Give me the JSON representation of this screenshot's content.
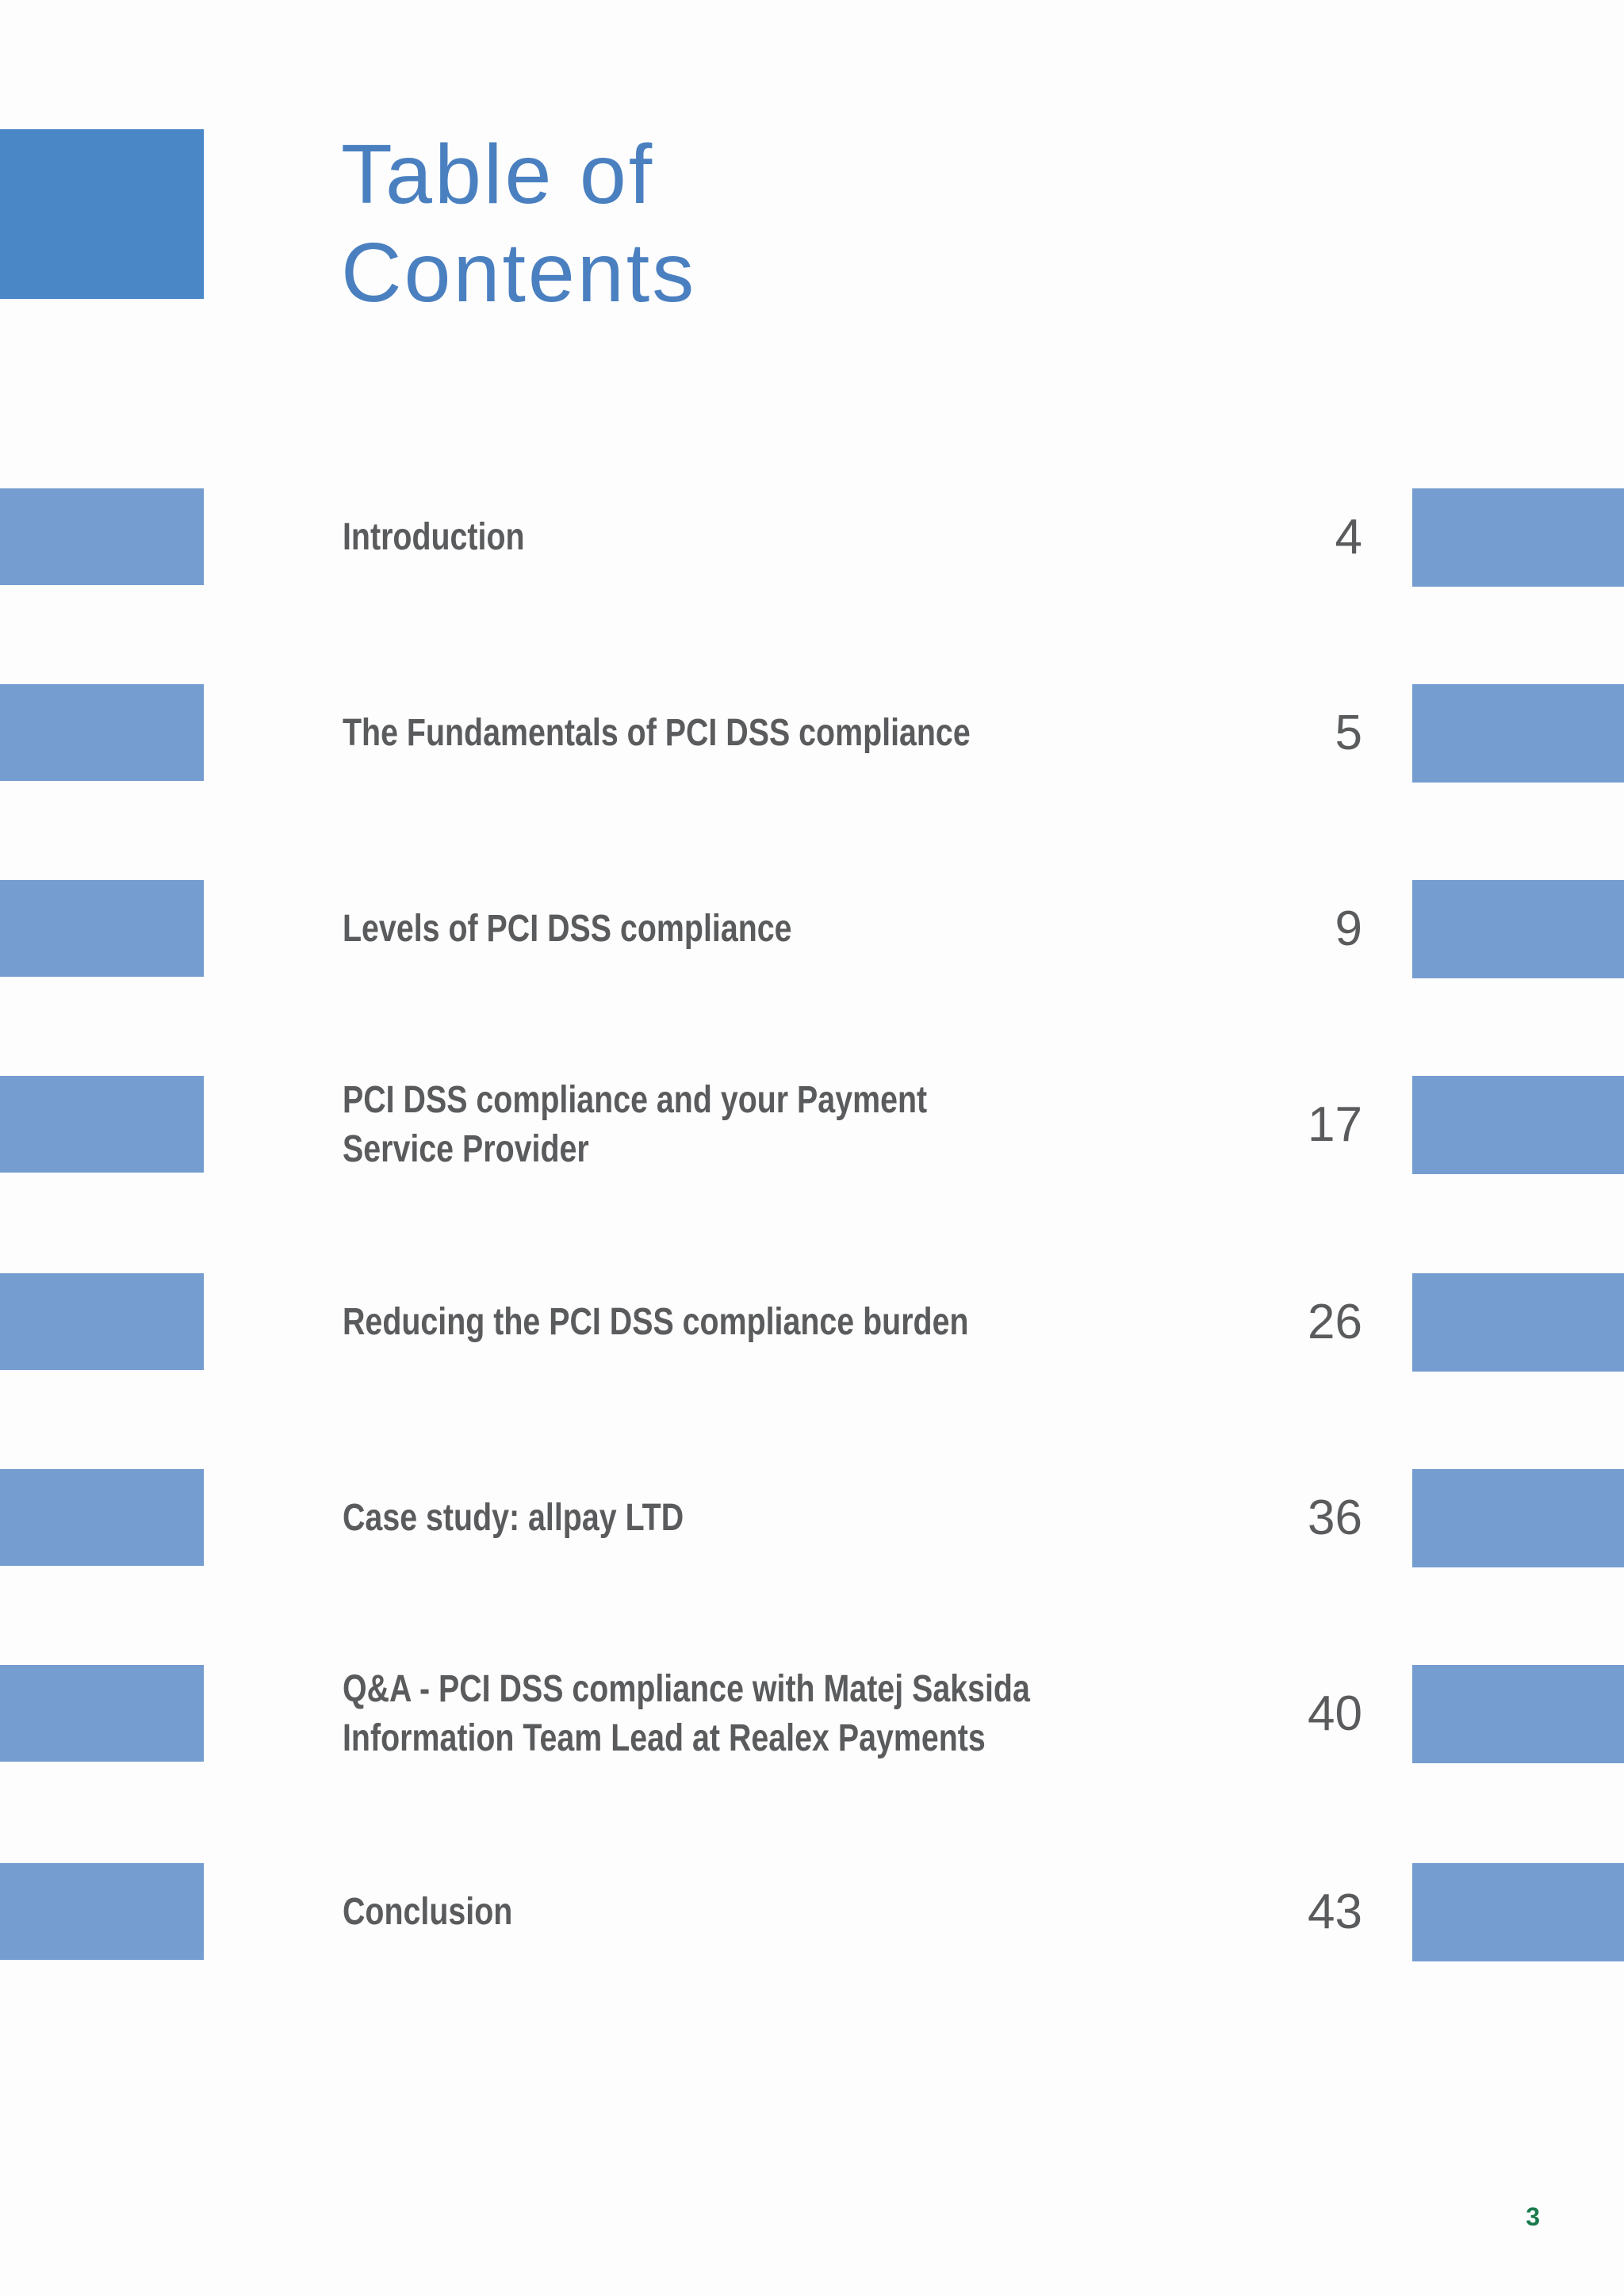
{
  "header": {
    "title_line1": "Table of",
    "title_line2": "Contents"
  },
  "toc": [
    {
      "title": "Introduction",
      "page": "4"
    },
    {
      "title": "The Fundamentals of PCI DSS compliance",
      "page": "5"
    },
    {
      "title": "Levels of PCI DSS compliance",
      "page": "9"
    },
    {
      "title": "PCI DSS compliance and your Payment\nService Provider",
      "page": "17"
    },
    {
      "title": "Reducing the PCI DSS compliance burden",
      "page": "26"
    },
    {
      "title": "Case study: allpay LTD",
      "page": "36"
    },
    {
      "title": "Q&A - PCI DSS compliance with Matej Saksida\nInformation Team Lead at Realex Payments",
      "page": "40"
    },
    {
      "title": "Conclusion",
      "page": "43"
    }
  ],
  "footer": {
    "page_number": "3"
  },
  "colors": {
    "title_block": "#4a87c7",
    "row_bar": "#759dd0",
    "title_text": "#4a80c0",
    "body_text": "#5a5b5d",
    "page_number": "#1a7a4c"
  }
}
